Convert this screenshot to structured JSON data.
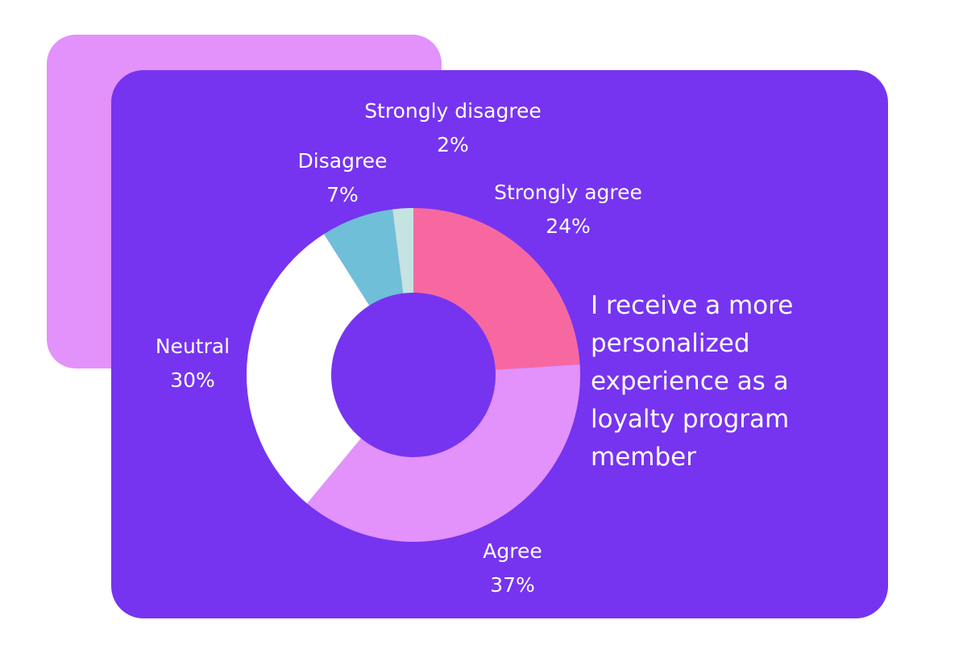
{
  "chart_data": {
    "type": "donut",
    "title": "I receive a more personalized experience as a loyalty program member",
    "categories": [
      "Strongly agree",
      "Agree",
      "Neutral",
      "Disagree",
      "Strongly disagree"
    ],
    "values": [
      24,
      37,
      30,
      7,
      2
    ],
    "value_labels": [
      "24%",
      "37%",
      "30%",
      "7%",
      "2%"
    ],
    "colors": [
      "#f768a1",
      "#e391fb",
      "#ffffff",
      "#6fbfd9",
      "#c5e3e0"
    ]
  }
}
